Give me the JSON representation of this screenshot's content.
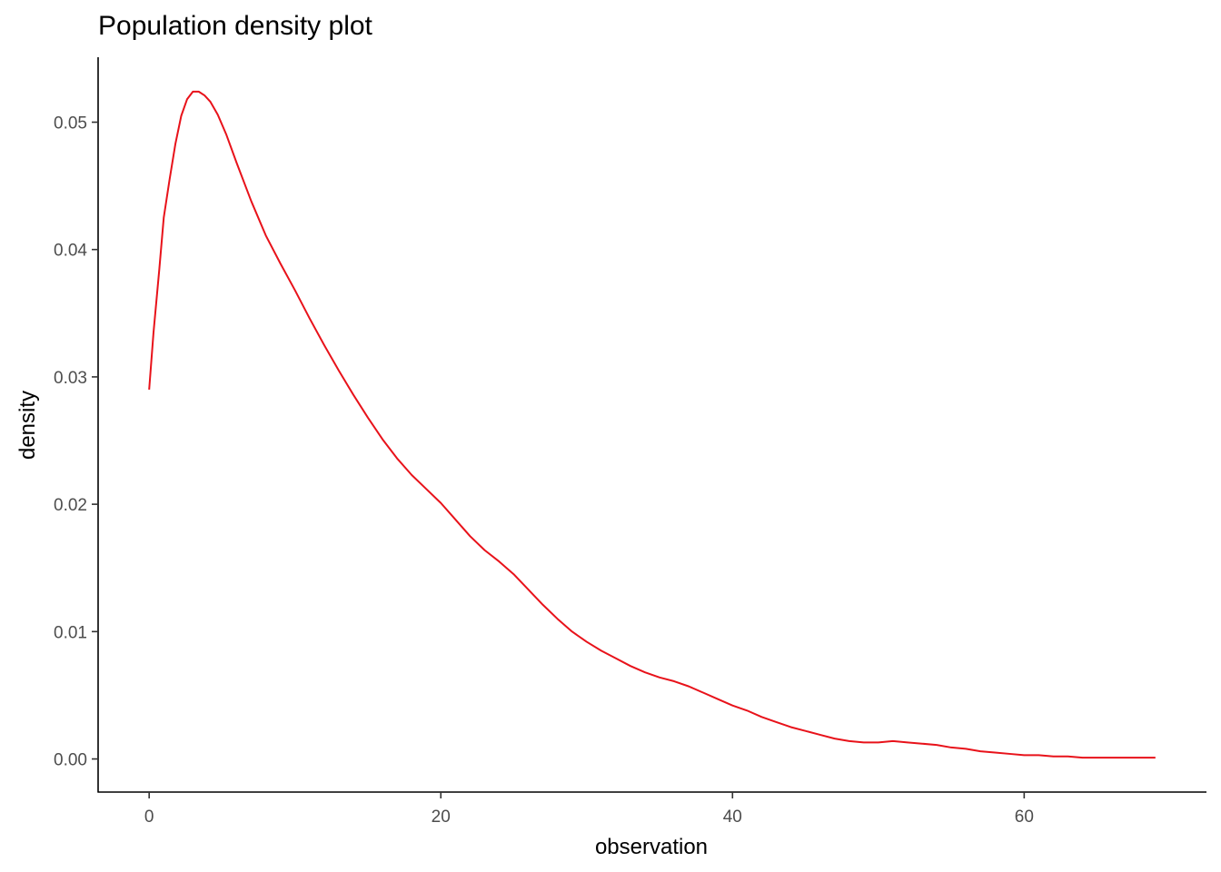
{
  "chart_data": {
    "type": "line",
    "title": "Population density plot",
    "xlabel": "observation",
    "ylabel": "density",
    "xlim": [
      -3.5,
      72.5
    ],
    "ylim": [
      -0.0026,
      0.0551
    ],
    "grid": false,
    "x_ticks": [
      0,
      20,
      40,
      60
    ],
    "x_tick_labels": [
      "0",
      "20",
      "40",
      "60"
    ],
    "y_ticks": [
      0.0,
      0.01,
      0.02,
      0.03,
      0.04,
      0.05
    ],
    "y_tick_labels": [
      "0.00",
      "0.01",
      "0.02",
      "0.03",
      "0.04",
      "0.05"
    ],
    "line_color": "#e8121a",
    "series": [
      {
        "x": [
          0,
          0.3,
          0.7,
          1.0,
          1.4,
          1.8,
          2.2,
          2.6,
          3.0,
          3.4,
          3.8,
          4.2,
          4.7,
          5.3,
          6.0,
          7.0,
          8.0,
          9.0,
          10.0,
          11.0,
          12.0,
          13.0,
          14.0,
          15.0,
          16.0,
          17.0,
          18.0,
          19.0,
          20.0,
          21.0,
          22.0,
          23.0,
          24.0,
          25.0,
          26.0,
          27.0,
          28.0,
          29.0,
          30.0,
          31.0,
          32.0,
          33.0,
          34.0,
          35.0,
          36.0,
          37.0,
          38.0,
          39.0,
          40.0,
          41.0,
          42.0,
          43.0,
          44.0,
          45.0,
          46.0,
          47.0,
          48.0,
          49.0,
          50.0,
          51.0,
          52.0,
          53.0,
          54.0,
          55.0,
          56.0,
          57.0,
          58.0,
          59.0,
          60.0,
          61.0,
          62.0,
          63.0,
          64.0,
          65.0,
          66.0,
          67.0,
          68.0,
          69.0
        ],
        "y": [
          0.029,
          0.0335,
          0.0385,
          0.0425,
          0.0455,
          0.0483,
          0.0505,
          0.0518,
          0.0524,
          0.0524,
          0.0521,
          0.0516,
          0.0506,
          0.049,
          0.0468,
          0.0438,
          0.0411,
          0.0389,
          0.0368,
          0.0346,
          0.0325,
          0.0305,
          0.0286,
          0.0268,
          0.0251,
          0.0236,
          0.0223,
          0.0212,
          0.0201,
          0.0188,
          0.0175,
          0.0164,
          0.0155,
          0.0145,
          0.0133,
          0.0121,
          0.011,
          0.01,
          0.0092,
          0.0085,
          0.0079,
          0.0073,
          0.0068,
          0.0064,
          0.0061,
          0.0057,
          0.0052,
          0.0047,
          0.0042,
          0.0038,
          0.0033,
          0.0029,
          0.0025,
          0.0022,
          0.0019,
          0.0016,
          0.0014,
          0.0013,
          0.0013,
          0.0014,
          0.0013,
          0.0012,
          0.0011,
          0.0009,
          0.0008,
          0.0006,
          0.0005,
          0.0004,
          0.0003,
          0.0003,
          0.0002,
          0.0002,
          0.0001,
          0.0001,
          0.0001,
          0.0001,
          0.0001,
          0.0001
        ]
      }
    ]
  }
}
